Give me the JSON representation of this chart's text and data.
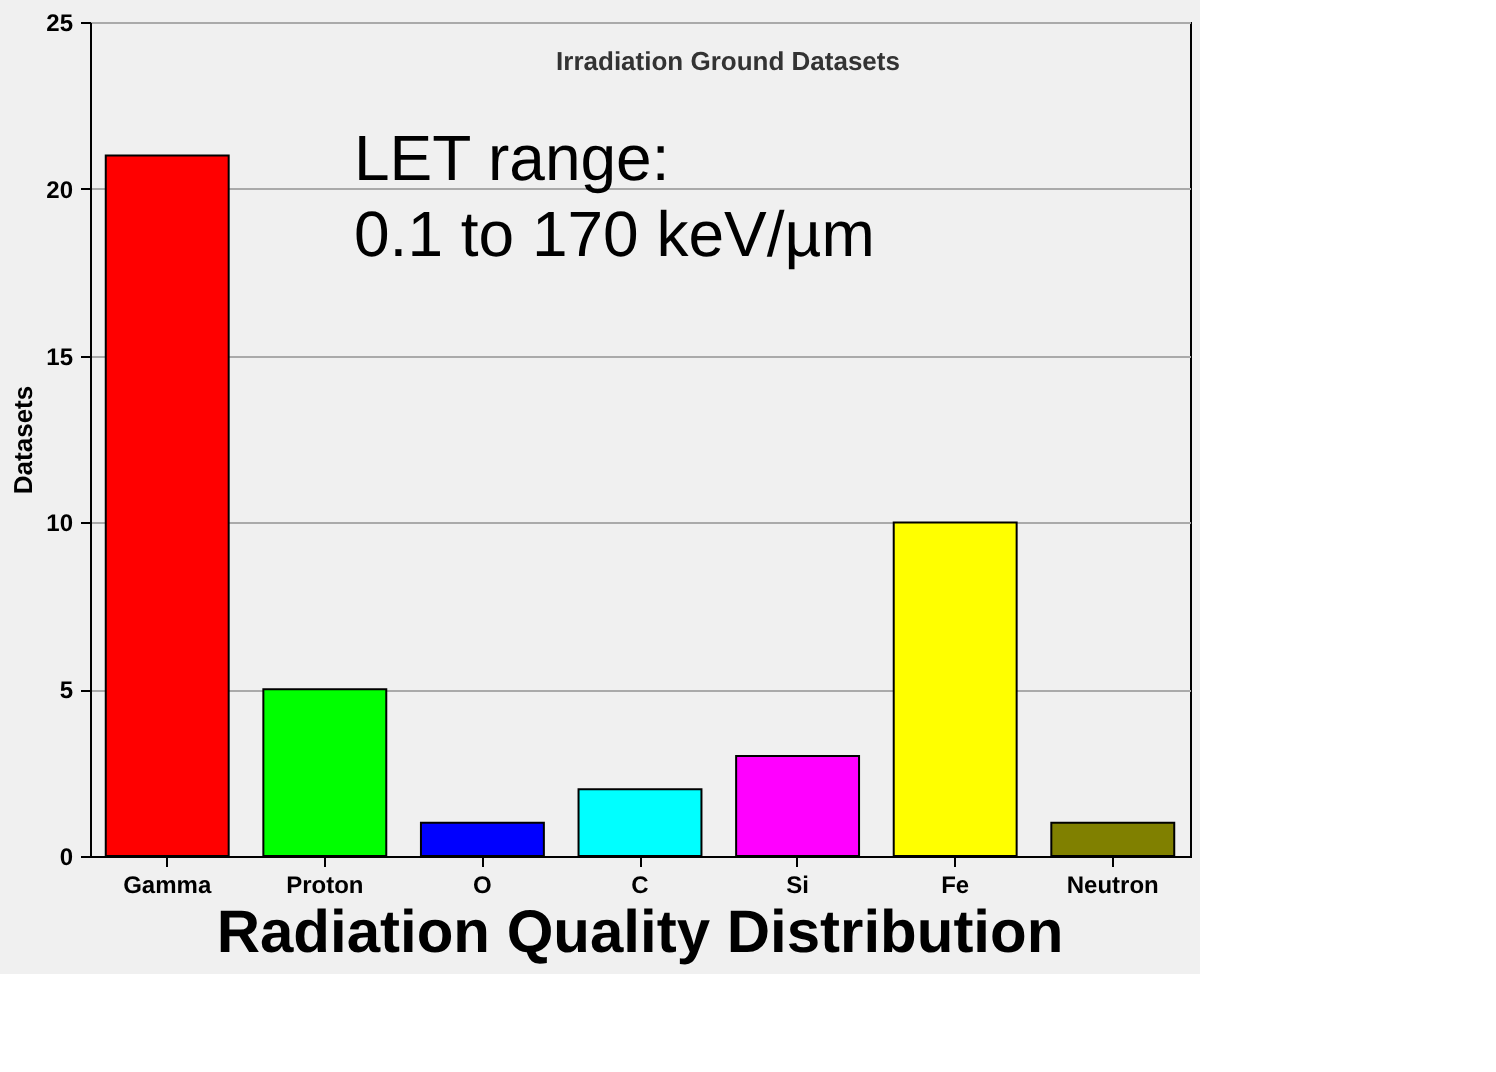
{
  "chart_data": {
    "type": "bar",
    "title": "Radiation Quality Distribution",
    "ylabel": "Datasets",
    "categories": [
      "Gamma",
      "Proton",
      "O",
      "C",
      "Si",
      "Fe",
      "Neutron"
    ],
    "values": [
      21,
      5,
      1,
      2,
      3,
      10,
      1
    ],
    "colors": [
      "#ff0000",
      "#00ff00",
      "#0000ff",
      "#00ffff",
      "#ff00ff",
      "#ffff00",
      "#808000"
    ],
    "ylim": [
      0,
      25
    ],
    "yticks": [
      0,
      5,
      10,
      15,
      20,
      25
    ],
    "grid": "y",
    "annotations": [
      "Irradiation Ground Datasets",
      "LET range:\n0.1 to 170 keV/µm"
    ]
  }
}
